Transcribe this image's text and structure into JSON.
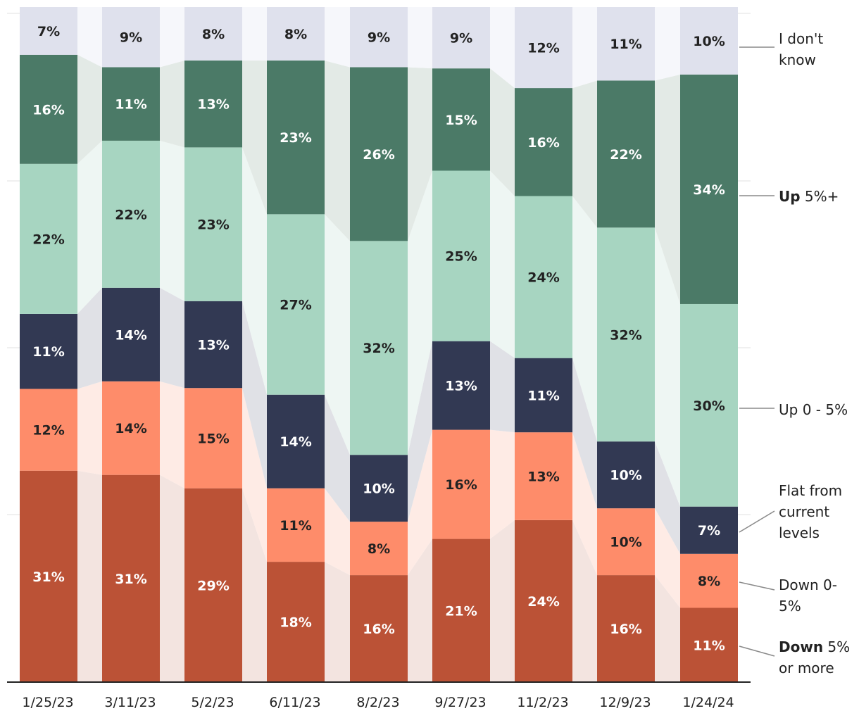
{
  "chart_data": {
    "type": "bar",
    "stacked": true,
    "percent_stacked": true,
    "title": "",
    "xlabel": "",
    "ylabel": "",
    "ylim": [
      0,
      100
    ],
    "grid": "horizontal",
    "legend_placement": "right, beside stacks",
    "categories": [
      "1/25/23",
      "3/11/23",
      "5/2/23",
      "6/11/23",
      "8/2/23",
      "9/27/23",
      "11/2/23",
      "12/9/23",
      "1/24/24"
    ],
    "series": [
      {
        "key": "down5",
        "legend_bold": "Down",
        "legend_rest": " 5% or more",
        "color": "#bb5236",
        "band_color": "#f3e4e0",
        "label_color": "#ffffff",
        "values": [
          31,
          31,
          29,
          18,
          16,
          21,
          24,
          16,
          11
        ],
        "labels": [
          "31%",
          "31%",
          "29%",
          "18%",
          "16%",
          "21%",
          "24%",
          "16%",
          "11%"
        ]
      },
      {
        "key": "down0",
        "legend_bold": "",
        "legend_rest": "Down 0-5%",
        "color": "#fe8c6a",
        "band_color": "#feebe5",
        "label_color": "#222222",
        "values": [
          12,
          14,
          15,
          11,
          8,
          16,
          13,
          10,
          8
        ],
        "labels": [
          "12%",
          "14%",
          "15%",
          "11%",
          "8%",
          "16%",
          "13%",
          "10%",
          "8%"
        ]
      },
      {
        "key": "flat",
        "legend_bold": "",
        "legend_rest": "Flat from current levels",
        "color": "#323953",
        "band_color": "#e0e1e6",
        "label_color": "#ffffff",
        "values": [
          11,
          14,
          13,
          14,
          10,
          13,
          11,
          10,
          7
        ],
        "labels": [
          "11%",
          "14%",
          "13%",
          "14%",
          "10%",
          "13%",
          "11%",
          "10%",
          "7%"
        ]
      },
      {
        "key": "up0",
        "legend_bold": "",
        "legend_rest": "Up 0 - 5%",
        "color": "#a7d5c1",
        "band_color": "#eef6f3",
        "label_color": "#222222",
        "values": [
          22,
          22,
          23,
          27,
          32,
          25,
          24,
          32,
          30
        ],
        "labels": [
          "22%",
          "22%",
          "23%",
          "27%",
          "32%",
          "25%",
          "24%",
          "32%",
          "30%"
        ]
      },
      {
        "key": "up5",
        "legend_bold": "Up",
        "legend_rest": " 5%+",
        "color": "#4b7a67",
        "band_color": "#e3eae6",
        "label_color": "#ffffff",
        "values": [
          16,
          11,
          13,
          23,
          26,
          15,
          16,
          22,
          34
        ],
        "labels": [
          "16%",
          "11%",
          "13%",
          "23%",
          "26%",
          "15%",
          "16%",
          "22%",
          "34%"
        ]
      },
      {
        "key": "dontknow",
        "legend_bold": "",
        "legend_rest": "I don't know",
        "color": "#dfe1ed",
        "band_color": "#f6f7fb",
        "label_color": "#222222",
        "values": [
          7,
          9,
          8,
          8,
          9,
          9,
          12,
          11,
          10
        ],
        "labels": [
          "7%",
          "9%",
          "8%",
          "8%",
          "9%",
          "9%",
          "12%",
          "11%",
          "10%"
        ]
      }
    ],
    "legend_lines": {
      "down5": [
        "Down",
        " 5%",
        "or more"
      ],
      "down0": [
        "Down 0-",
        "5%"
      ],
      "flat": [
        "Flat from",
        "current",
        "levels"
      ],
      "up0": [
        "Up 0 - 5%"
      ],
      "up5": [
        "Up",
        " 5%+"
      ],
      "dontknow": [
        "I don't",
        "know"
      ]
    }
  }
}
